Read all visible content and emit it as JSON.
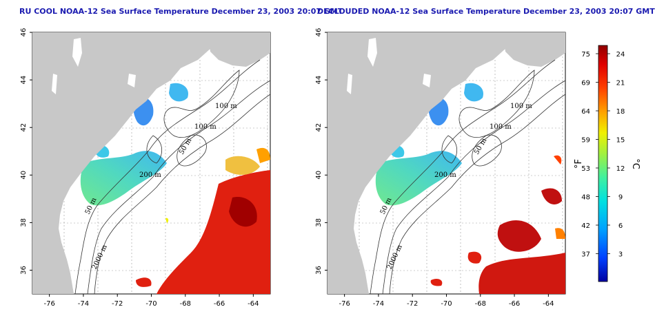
{
  "panels": [
    {
      "id": "left",
      "title": "RU COOL NOAA-12 Sea Surface Temperature December 23, 2003 20:07 GMT",
      "variant": "raw"
    },
    {
      "id": "right",
      "title": "DECLOUDED NOAA-12 Sea Surface Temperature December 23, 2003 20:07 GMT",
      "variant": "declouded"
    }
  ],
  "axes": {
    "lon_ticks": [
      -76,
      -74,
      -72,
      -70,
      -68,
      -66,
      -64
    ],
    "lat_ticks": [
      36,
      38,
      40,
      42,
      44,
      46
    ],
    "lon_range": [
      -77,
      -63
    ],
    "lat_range": [
      35,
      46
    ]
  },
  "contour_labels": [
    "100 m",
    "100 m",
    "50 m",
    "200 m",
    "50 m",
    "2000 m"
  ],
  "colorbar": {
    "fahrenheit_ticks": [
      "75",
      "69",
      "64",
      "59",
      "53",
      "48",
      "42",
      "37"
    ],
    "celsius_ticks": [
      "24",
      "21",
      "18",
      "15",
      "12",
      "9",
      "6",
      "3"
    ],
    "unit_f": "°F",
    "unit_c": "°C"
  },
  "colors": {
    "land": "#c8c8c8",
    "title": "#1a1ab0",
    "grid": "#999999",
    "scale": [
      "#0000a0",
      "#0040ff",
      "#00a0ff",
      "#00e0e0",
      "#40f0a0",
      "#a0f040",
      "#f0f000",
      "#ffa000",
      "#ff4000",
      "#e00000",
      "#900000"
    ]
  }
}
